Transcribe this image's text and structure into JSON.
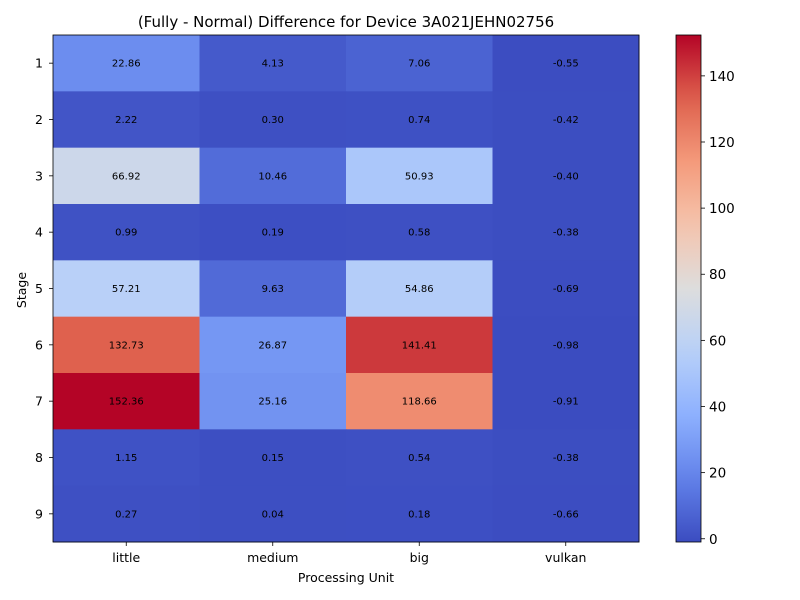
{
  "chart_data": {
    "type": "heatmap",
    "title": "(Fully - Normal) Difference for Device 3A021JEHN02756",
    "xlabel": "Processing Unit",
    "ylabel": "Stage",
    "x_categories": [
      "little",
      "medium",
      "big",
      "vulkan"
    ],
    "y_categories": [
      "1",
      "2",
      "3",
      "4",
      "5",
      "6",
      "7",
      "8",
      "9"
    ],
    "values": [
      [
        22.86,
        4.13,
        7.06,
        -0.55
      ],
      [
        2.22,
        0.3,
        0.74,
        -0.42
      ],
      [
        66.92,
        10.46,
        50.93,
        -0.4
      ],
      [
        0.99,
        0.19,
        0.58,
        -0.38
      ],
      [
        57.21,
        9.63,
        54.86,
        -0.69
      ],
      [
        132.73,
        26.87,
        141.41,
        -0.98
      ],
      [
        152.36,
        25.16,
        118.66,
        -0.91
      ],
      [
        1.15,
        0.15,
        0.54,
        -0.38
      ],
      [
        0.27,
        0.04,
        0.18,
        -0.66
      ]
    ],
    "value_labels": [
      [
        "22.86",
        "4.13",
        "7.06",
        "-0.55"
      ],
      [
        "2.22",
        "0.30",
        "0.74",
        "-0.42"
      ],
      [
        "66.92",
        "10.46",
        "50.93",
        "-0.40"
      ],
      [
        "0.99",
        "0.19",
        "0.58",
        "-0.38"
      ],
      [
        "57.21",
        "9.63",
        "54.86",
        "-0.69"
      ],
      [
        "132.73",
        "26.87",
        "141.41",
        "-0.98"
      ],
      [
        "152.36",
        "25.16",
        "118.66",
        "-0.91"
      ],
      [
        "1.15",
        "0.15",
        "0.54",
        "-0.38"
      ],
      [
        "0.27",
        "0.04",
        "0.18",
        "-0.66"
      ]
    ],
    "colormap": "coolwarm",
    "colorbar": {
      "min": -0.98,
      "max": 152.36,
      "ticks": [
        0,
        20,
        40,
        60,
        80,
        100,
        120,
        140
      ],
      "tick_labels": [
        "0",
        "20",
        "40",
        "60",
        "80",
        "100",
        "120",
        "140"
      ]
    },
    "grid": false,
    "legend": "colorbar-right"
  }
}
